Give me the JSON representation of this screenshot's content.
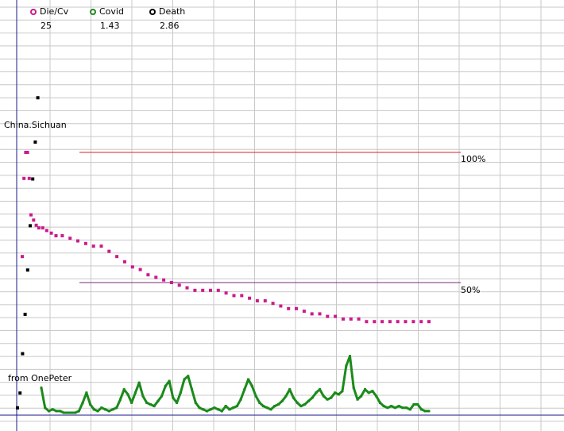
{
  "chart_data": {
    "type": "line",
    "title": "",
    "xlabel": "",
    "ylabel": "",
    "grid": true,
    "legend_position": "top-left",
    "legend": [
      {
        "name": "Die/Cv",
        "value": "25",
        "color": "#cc1a8d"
      },
      {
        "name": "Covid",
        "value": "1.43",
        "color": "#1b8a1b"
      },
      {
        "name": "Death",
        "value": "2.86",
        "color": "#000000"
      }
    ],
    "annotations": {
      "region": "China.Sichuan",
      "source": "from OnePeter",
      "ref_100": "100%",
      "ref_50": "50%"
    },
    "reference_lines": [
      {
        "label": "100%",
        "value": 100,
        "color": "#dd2222"
      },
      {
        "label": "50%",
        "value": 50,
        "color": "#7a2a7a"
      }
    ],
    "series": [
      {
        "name": "Die/Cv",
        "color": "#cc1a8d",
        "x": [
          0,
          2,
          4,
          6,
          8,
          10,
          13,
          16,
          20,
          25,
          30,
          36,
          42,
          50,
          60,
          70,
          80,
          90,
          100,
          110,
          120,
          130,
          140,
          150,
          160,
          170,
          180,
          190,
          200,
          210,
          220,
          230,
          240,
          250,
          260,
          270,
          280,
          290,
          300,
          310,
          320,
          330,
          340,
          350,
          360,
          370,
          380,
          390,
          400,
          410,
          420,
          430,
          440,
          450,
          460,
          470,
          480,
          490,
          500,
          510,
          520
        ],
        "y": [
          60,
          90,
          100,
          100,
          90,
          76,
          74,
          72,
          71,
          71,
          70,
          69,
          68,
          68,
          67,
          66,
          65,
          64,
          64,
          62,
          60,
          58,
          56,
          55,
          53,
          52,
          51,
          50,
          49,
          48,
          47,
          47,
          47,
          47,
          46,
          45,
          45,
          44,
          43,
          43,
          42,
          41,
          40,
          40,
          39,
          38,
          38,
          37,
          37,
          36,
          36,
          36,
          35,
          35,
          35,
          35,
          35,
          35,
          35,
          35,
          35
        ]
      },
      {
        "name": "Covid",
        "color": "#1b8a1b",
        "x": [
          0,
          5,
          10,
          15,
          20,
          25,
          30,
          35,
          40,
          45,
          50,
          55,
          60,
          65,
          70,
          75,
          80,
          85,
          90,
          95,
          100,
          105,
          110,
          115,
          120,
          125,
          130,
          135,
          140,
          145,
          150,
          155,
          160,
          165,
          170,
          175,
          180,
          185,
          190,
          195,
          200,
          205,
          210,
          215,
          220,
          225,
          230,
          235,
          240,
          245,
          250,
          255,
          260,
          265,
          270,
          275,
          280,
          285,
          290,
          295,
          300,
          305,
          310,
          315,
          320,
          325,
          330,
          335,
          340,
          345,
          350,
          355,
          360,
          365,
          370,
          375,
          380,
          385,
          390,
          395,
          400,
          405,
          410,
          415,
          420,
          425,
          430,
          435,
          440,
          445,
          450,
          455,
          460,
          465,
          470,
          475,
          480,
          485,
          490,
          495,
          500,
          505,
          510,
          515
        ],
        "y": [
          15,
          3,
          1,
          2,
          1,
          1,
          0,
          0,
          0,
          0,
          1,
          6,
          12,
          5,
          2,
          1,
          3,
          2,
          1,
          2,
          3,
          8,
          14,
          11,
          6,
          12,
          18,
          10,
          6,
          5,
          4,
          7,
          10,
          16,
          19,
          9,
          6,
          12,
          20,
          22,
          14,
          6,
          3,
          2,
          1,
          2,
          3,
          2,
          1,
          4,
          2,
          3,
          4,
          8,
          14,
          20,
          16,
          10,
          6,
          4,
          3,
          2,
          4,
          5,
          7,
          10,
          14,
          9,
          6,
          4,
          5,
          7,
          9,
          12,
          14,
          10,
          8,
          9,
          12,
          11,
          13,
          28,
          34,
          15,
          8,
          10,
          14,
          12,
          13,
          10,
          6,
          4,
          3,
          4,
          3,
          4,
          3,
          3,
          2,
          5,
          5,
          2,
          1,
          1
        ]
      },
      {
        "name": "Death",
        "color": "#000000",
        "x": [
          0,
          1,
          2,
          3,
          4,
          5,
          6,
          7,
          8
        ],
        "y": [
          2,
          8,
          24,
          40,
          58,
          76,
          95,
          110,
          128
        ]
      }
    ]
  }
}
